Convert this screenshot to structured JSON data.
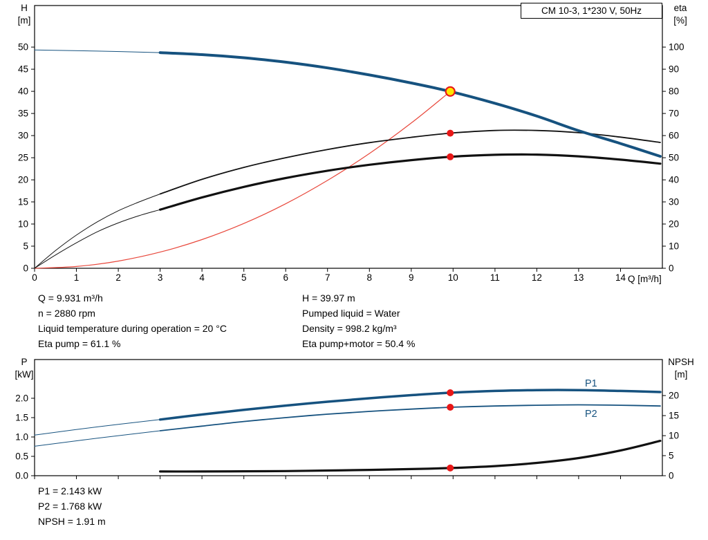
{
  "title_box": "CM 10-3, 1*230 V, 50Hz",
  "colors": {
    "curve_blue": "#16527f",
    "curve_red": "#e8473b",
    "curve_black": "#111111",
    "dot_red": "#e81717",
    "duty_fill": "#ffe600",
    "label_blue": "#16527f",
    "axis_black": "#000000"
  },
  "info_top": {
    "left": [
      "Q = 9.931 m³/h",
      "n = 2880 rpm",
      "Liquid temperature during operation = 20 °C",
      "Eta pump = 61.1 %"
    ],
    "right": [
      "H = 39.97 m",
      "Pumped liquid = Water",
      "Density = 998.2 kg/m³",
      "Eta pump+motor = 50.4 %"
    ]
  },
  "info_bottom": [
    "P1 = 2.143 kW",
    "P2 = 1.768 kW",
    "NPSH = 1.91 m"
  ],
  "chart_data": [
    {
      "type": "line",
      "title": "CM 10-3, 1*230 V, 50Hz",
      "xlabel": "Q [m³/h]",
      "ylabel_left_lines": [
        "H",
        "[m]"
      ],
      "ylabel_right_lines": [
        "eta",
        "[%]"
      ],
      "xlim": [
        0,
        15
      ],
      "ylim_left": [
        0,
        59.4
      ],
      "ylim_right": [
        0,
        118.8
      ],
      "grid": false,
      "x_ticks": [
        [
          0,
          "0"
        ],
        [
          1,
          "1"
        ],
        [
          2,
          "2"
        ],
        [
          3,
          "3"
        ],
        [
          4,
          "4"
        ],
        [
          5,
          "5"
        ],
        [
          6,
          "6"
        ],
        [
          7,
          "7"
        ],
        [
          8,
          "8"
        ],
        [
          9,
          "9"
        ],
        [
          10,
          "10"
        ],
        [
          11,
          "11"
        ],
        [
          12,
          "12"
        ],
        [
          13,
          "13"
        ],
        [
          14,
          "14"
        ]
      ],
      "y_ticks_left": [
        [
          0,
          "0"
        ],
        [
          5,
          "5"
        ],
        [
          10,
          "10"
        ],
        [
          15,
          "15"
        ],
        [
          20,
          "20"
        ],
        [
          25,
          "25"
        ],
        [
          30,
          "30"
        ],
        [
          35,
          "35"
        ],
        [
          40,
          "40"
        ],
        [
          45,
          "45"
        ],
        [
          50,
          "50"
        ]
      ],
      "y_ticks_right": [
        [
          0,
          "0"
        ],
        [
          10,
          "10"
        ],
        [
          20,
          "20"
        ],
        [
          30,
          "30"
        ],
        [
          40,
          "40"
        ],
        [
          50,
          "50"
        ],
        [
          60,
          "60"
        ],
        [
          70,
          "70"
        ],
        [
          80,
          "80"
        ],
        [
          90,
          "90"
        ],
        [
          100,
          "100"
        ]
      ],
      "series": [
        {
          "name": "h-curve-extrapolated",
          "axis": "left",
          "color": "#16527f",
          "width": 1,
          "points": [
            [
              0,
              49.35
            ],
            [
              1.5,
              49.1
            ],
            [
              3,
              48.75
            ]
          ]
        },
        {
          "name": "system-curve",
          "axis": "left",
          "color": "#e8473b",
          "width": 1.2,
          "points": [
            [
              0,
              0
            ],
            [
              1,
              0.41
            ],
            [
              2,
              1.62
            ],
            [
              3,
              3.65
            ],
            [
              4,
              6.49
            ],
            [
              5,
              10.13
            ],
            [
              6,
              14.59
            ],
            [
              7,
              19.86
            ],
            [
              8,
              25.95
            ],
            [
              9,
              32.84
            ],
            [
              9.931,
              39.97
            ]
          ]
        },
        {
          "name": "eta-pump-low-flow",
          "axis": "right",
          "color": "#111111",
          "width": 1,
          "points": [
            [
              0,
              0
            ],
            [
              0.5,
              8
            ],
            [
              1,
              15
            ],
            [
              1.5,
              21
            ],
            [
              2,
              26
            ],
            [
              2.5,
              30
            ],
            [
              3,
              33.6
            ]
          ]
        },
        {
          "name": "eta-pump",
          "axis": "right",
          "color": "#111111",
          "width": 1.8,
          "points": [
            [
              3,
              33.6
            ],
            [
              4,
              40.2
            ],
            [
              5,
              45.6
            ],
            [
              6,
              50
            ],
            [
              7,
              53.7
            ],
            [
              8,
              56.8
            ],
            [
              9,
              59.2
            ],
            [
              9.931,
              61.1
            ],
            [
              11,
              62.3
            ],
            [
              12,
              62.3
            ],
            [
              13,
              61.3
            ],
            [
              14,
              59.3
            ],
            [
              14.95,
              56.9
            ]
          ]
        },
        {
          "name": "eta-pump-motor-low-flow",
          "axis": "right",
          "color": "#111111",
          "width": 1,
          "points": [
            [
              0,
              0
            ],
            [
              0.5,
              6
            ],
            [
              1,
              11.5
            ],
            [
              1.5,
              16.5
            ],
            [
              2,
              20.5
            ],
            [
              2.5,
              23.8
            ],
            [
              3,
              26.5
            ]
          ]
        },
        {
          "name": "eta-pump-motor",
          "axis": "right",
          "color": "#111111",
          "width": 3.2,
          "points": [
            [
              3,
              26.5
            ],
            [
              4,
              32
            ],
            [
              5,
              36.8
            ],
            [
              6,
              40.8
            ],
            [
              7,
              44.1
            ],
            [
              8,
              46.8
            ],
            [
              9,
              48.9
            ],
            [
              9.931,
              50.4
            ],
            [
              11,
              51.3
            ],
            [
              12,
              51.4
            ],
            [
              13,
              50.6
            ],
            [
              14,
              49.1
            ],
            [
              14.95,
              47.3
            ]
          ]
        },
        {
          "name": "h-curve",
          "axis": "left",
          "color": "#16527f",
          "width": 4,
          "points": [
            [
              3,
              48.75
            ],
            [
              4,
              48.3
            ],
            [
              5,
              47.6
            ],
            [
              6,
              46.6
            ],
            [
              7,
              45.3
            ],
            [
              8,
              43.7
            ],
            [
              9,
              41.9
            ],
            [
              9.931,
              39.97
            ],
            [
              11,
              37.3
            ],
            [
              12,
              34.4
            ],
            [
              13,
              31.1
            ],
            [
              14,
              28.2
            ],
            [
              14.95,
              25.3
            ]
          ]
        }
      ],
      "markers": [
        {
          "x": 9.931,
          "y": 39.97,
          "axis": "left",
          "style": "duty"
        },
        {
          "x": 9.931,
          "y": 61.1,
          "axis": "right",
          "style": "dot"
        },
        {
          "x": 9.931,
          "y": 50.4,
          "axis": "right",
          "style": "dot"
        }
      ],
      "labels": []
    },
    {
      "type": "line",
      "title": "",
      "xlabel": "",
      "ylabel_left_lines": [
        "P",
        "[kW]"
      ],
      "ylabel_right_lines": [
        "NPSH",
        "[m]"
      ],
      "xlim": [
        0,
        15
      ],
      "ylim_left": [
        0,
        3.0
      ],
      "ylim_right": [
        0,
        29
      ],
      "grid": false,
      "x_ticks": [
        [
          0,
          ""
        ],
        [
          1,
          ""
        ],
        [
          2,
          ""
        ],
        [
          3,
          ""
        ],
        [
          4,
          ""
        ],
        [
          5,
          ""
        ],
        [
          6,
          ""
        ],
        [
          7,
          ""
        ],
        [
          8,
          ""
        ],
        [
          9,
          ""
        ],
        [
          10,
          ""
        ],
        [
          11,
          ""
        ],
        [
          12,
          ""
        ],
        [
          13,
          ""
        ],
        [
          14,
          ""
        ]
      ],
      "y_ticks_left": [
        [
          0,
          "0.0"
        ],
        [
          0.5,
          "0.5"
        ],
        [
          1,
          "1.0"
        ],
        [
          1.5,
          "1.5"
        ],
        [
          2,
          "2.0"
        ]
      ],
      "y_ticks_right": [
        [
          0,
          "0"
        ],
        [
          5,
          "5"
        ],
        [
          10,
          "10"
        ],
        [
          15,
          "15"
        ],
        [
          20,
          "20"
        ]
      ],
      "series": [
        {
          "name": "p1-low-flow",
          "axis": "left",
          "color": "#16527f",
          "width": 1,
          "points": [
            [
              0,
              1.05
            ],
            [
              1.5,
              1.26
            ],
            [
              3,
              1.45
            ]
          ]
        },
        {
          "name": "p2-low-flow",
          "axis": "left",
          "color": "#16527f",
          "width": 1,
          "points": [
            [
              0,
              0.76
            ],
            [
              1.5,
              0.97
            ],
            [
              3,
              1.16
            ]
          ]
        },
        {
          "name": "p2",
          "axis": "left",
          "color": "#16527f",
          "width": 1.8,
          "points": [
            [
              3,
              1.16
            ],
            [
              4,
              1.28
            ],
            [
              5,
              1.4
            ],
            [
              6,
              1.5
            ],
            [
              7,
              1.59
            ],
            [
              8,
              1.66
            ],
            [
              9,
              1.72
            ],
            [
              9.931,
              1.768
            ],
            [
              11,
              1.8
            ],
            [
              12,
              1.82
            ],
            [
              13,
              1.83
            ],
            [
              14,
              1.82
            ],
            [
              14.95,
              1.8
            ]
          ]
        },
        {
          "name": "npsh",
          "axis": "right",
          "color": "#111111",
          "width": 3.2,
          "points": [
            [
              3,
              1.05
            ],
            [
              4,
              1.05
            ],
            [
              5,
              1.1
            ],
            [
              6,
              1.15
            ],
            [
              7,
              1.3
            ],
            [
              8,
              1.45
            ],
            [
              9,
              1.65
            ],
            [
              9.931,
              1.91
            ],
            [
              11,
              2.4
            ],
            [
              12,
              3.2
            ],
            [
              13,
              4.4
            ],
            [
              14,
              6.3
            ],
            [
              14.95,
              8.7
            ]
          ]
        },
        {
          "name": "p1",
          "axis": "left",
          "color": "#16527f",
          "width": 3.5,
          "points": [
            [
              3,
              1.45
            ],
            [
              4,
              1.58
            ],
            [
              5,
              1.7
            ],
            [
              6,
              1.81
            ],
            [
              7,
              1.91
            ],
            [
              8,
              2.0
            ],
            [
              9,
              2.08
            ],
            [
              9.931,
              2.143
            ],
            [
              11,
              2.19
            ],
            [
              12,
              2.21
            ],
            [
              13,
              2.21
            ],
            [
              14,
              2.19
            ],
            [
              14.95,
              2.16
            ]
          ]
        }
      ],
      "markers": [
        {
          "x": 9.931,
          "y": 2.143,
          "axis": "left",
          "style": "dot"
        },
        {
          "x": 9.931,
          "y": 1.768,
          "axis": "left",
          "style": "dot"
        },
        {
          "x": 9.931,
          "y": 1.91,
          "axis": "right",
          "style": "dot"
        }
      ],
      "labels": [
        {
          "text": "P1",
          "x": 13.15,
          "y": 2.3
        },
        {
          "text": "P2",
          "x": 13.15,
          "y": 1.52
        }
      ]
    }
  ]
}
